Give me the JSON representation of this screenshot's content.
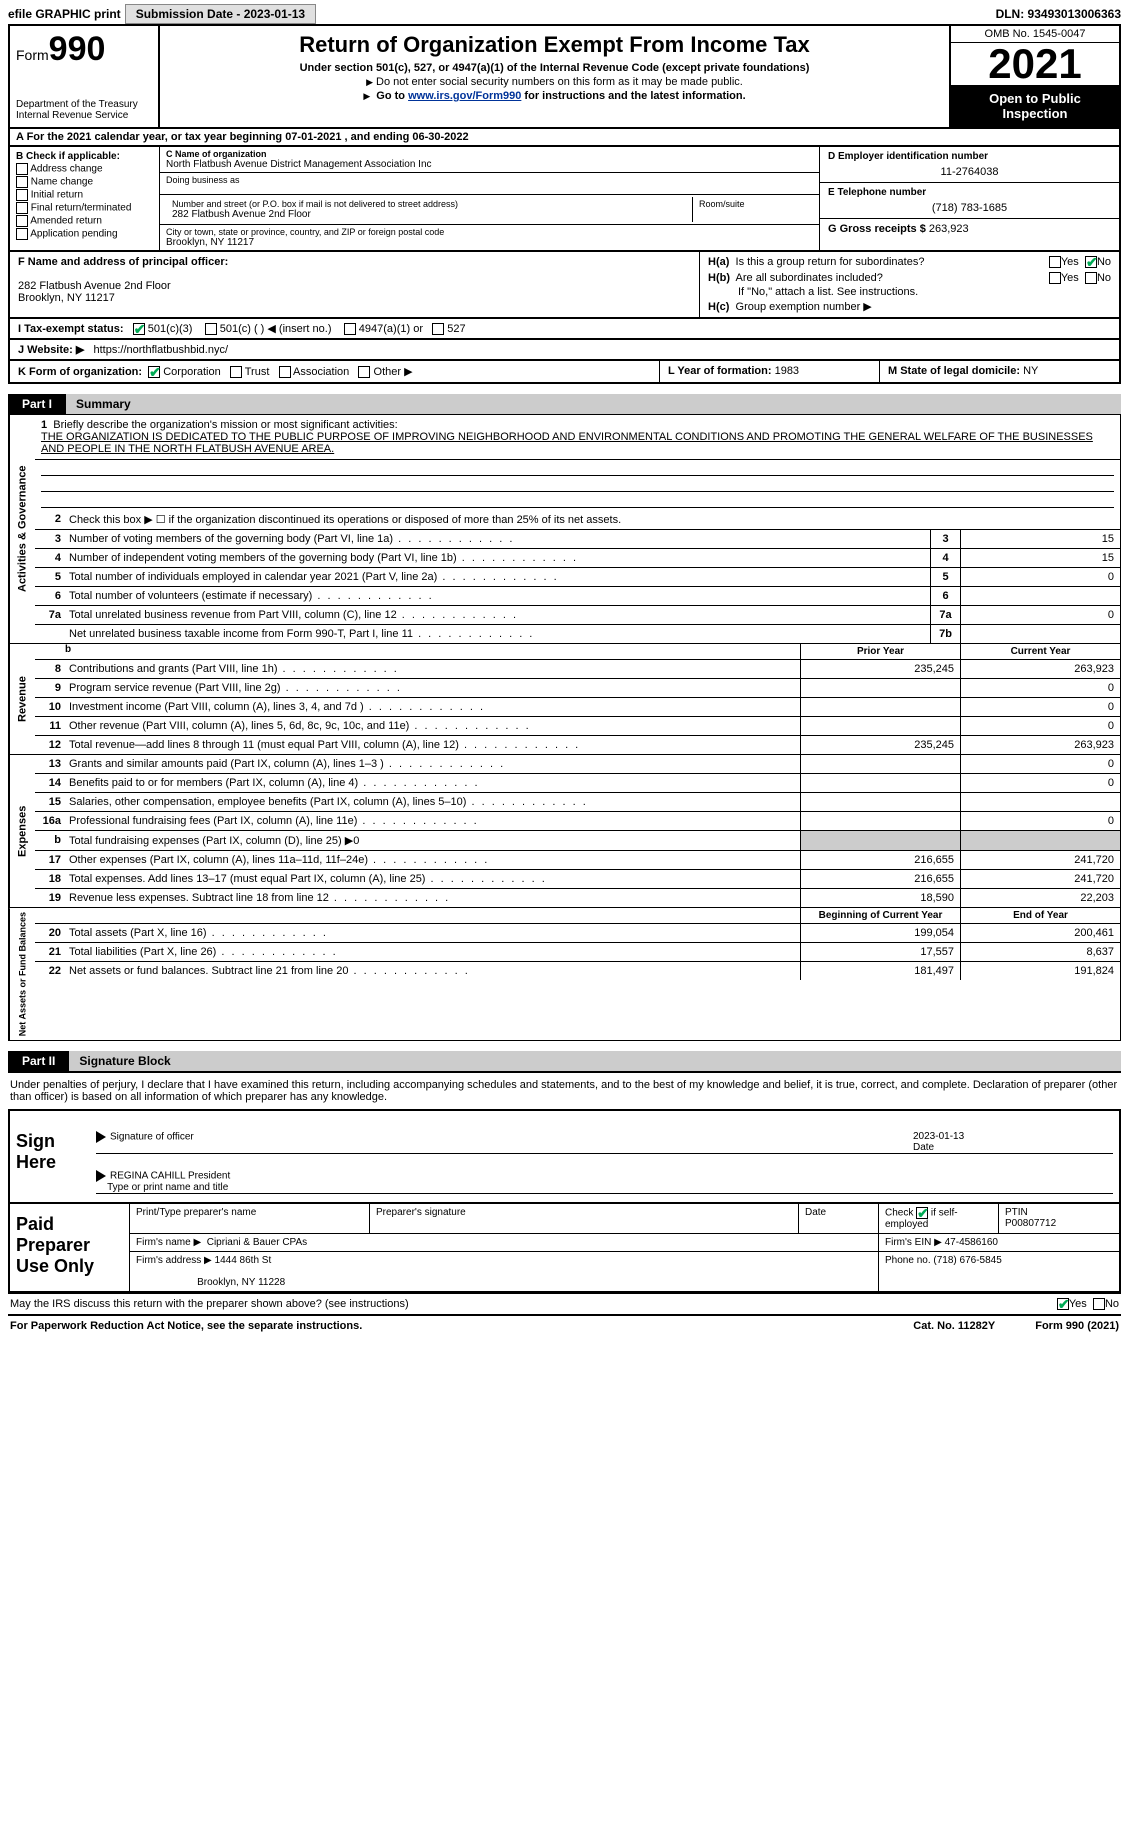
{
  "top": {
    "efile": "efile GRAPHIC print",
    "submission": "Submission Date - 2023-01-13",
    "dln": "DLN: 93493013006363"
  },
  "header": {
    "form_word": "Form",
    "form_num": "990",
    "dept": "Department of the Treasury Internal Revenue Service",
    "title": "Return of Organization Exempt From Income Tax",
    "sub": "Under section 501(c), 527, or 4947(a)(1) of the Internal Revenue Code (except private foundations)",
    "note1": "Do not enter social security numbers on this form as it may be made public.",
    "note2_a": "Go to ",
    "note2_link": "www.irs.gov/Form990",
    "note2_b": " for instructions and the latest information.",
    "omb": "OMB No. 1545-0047",
    "year": "2021",
    "open": "Open to Public Inspection"
  },
  "rowA": "A For the 2021 calendar year, or tax year beginning 07-01-2021    , and ending 06-30-2022",
  "boxB": {
    "hdr": "B Check if applicable:",
    "items": [
      "Address change",
      "Name change",
      "Initial return",
      "Final return/terminated",
      "Amended return",
      "Application pending"
    ]
  },
  "boxC": {
    "lbl": "C Name of organization",
    "name": "North Flatbush Avenue District Management Association Inc",
    "dba_lbl": "Doing business as",
    "addr_lbl": "Number and street (or P.O. box if mail is not delivered to street address)",
    "room_lbl": "Room/suite",
    "addr": "282 Flatbush Avenue 2nd Floor",
    "city_lbl": "City or town, state or province, country, and ZIP or foreign postal code",
    "city": "Brooklyn, NY  11217"
  },
  "boxD": {
    "lbl": "D Employer identification number",
    "val": "11-2764038"
  },
  "boxE": {
    "lbl": "E Telephone number",
    "val": "(718) 783-1685"
  },
  "boxG": {
    "lbl": "G Gross receipts $",
    "val": "263,923"
  },
  "boxF": {
    "lbl": "F  Name and address of principal officer:",
    "addr1": "282 Flatbush Avenue 2nd Floor",
    "addr2": "Brooklyn, NY  11217"
  },
  "boxH": {
    "a": "Is this a group return for subordinates?",
    "b": "Are all subordinates included?",
    "note": "If \"No,\" attach a list. See instructions.",
    "c": "Group exemption number ▶",
    "yes": "Yes",
    "no": "No"
  },
  "rowI": {
    "lbl": "I   Tax-exempt status:",
    "a": "501(c)(3)",
    "b": "501(c) (  ) ◀ (insert no.)",
    "c": "4947(a)(1) or",
    "d": "527"
  },
  "rowJ": {
    "lbl": "J   Website: ▶",
    "val": "https://northflatbushbid.nyc/"
  },
  "rowK": {
    "lbl": "K Form of organization:",
    "a": "Corporation",
    "b": "Trust",
    "c": "Association",
    "d": "Other ▶"
  },
  "rowL": {
    "lbl": "L Year of formation:",
    "val": "1983"
  },
  "rowM": {
    "lbl": "M State of legal domicile:",
    "val": "NY"
  },
  "part1": {
    "tab": "Part I",
    "title": "Summary"
  },
  "mission": {
    "q": "Briefly describe the organization's mission or most significant activities:",
    "txt": "THE ORGANIZATION IS DEDICATED TO THE PUBLIC PURPOSE OF IMPROVING NEIGHBORHOOD AND ENVIRONMENTAL CONDITIONS AND PROMOTING THE GENERAL WELFARE OF THE BUSINESSES AND PEOPLE IN THE NORTH FLATBUSH AVENUE AREA."
  },
  "gov_lines": [
    {
      "n": "2",
      "t": "Check this box ▶ ☐  if the organization discontinued its operations or disposed of more than 25% of its net assets."
    },
    {
      "n": "3",
      "t": "Number of voting members of the governing body (Part VI, line 1a)",
      "box": "3",
      "v": "15"
    },
    {
      "n": "4",
      "t": "Number of independent voting members of the governing body (Part VI, line 1b)",
      "box": "4",
      "v": "15"
    },
    {
      "n": "5",
      "t": "Total number of individuals employed in calendar year 2021 (Part V, line 2a)",
      "box": "5",
      "v": "0"
    },
    {
      "n": "6",
      "t": "Total number of volunteers (estimate if necessary)",
      "box": "6",
      "v": ""
    },
    {
      "n": "7a",
      "t": "Total unrelated business revenue from Part VIII, column (C), line 12",
      "box": "7a",
      "v": "0"
    },
    {
      "n": "",
      "t": "Net unrelated business taxable income from Form 990-T, Part I, line 11",
      "box": "7b",
      "v": ""
    }
  ],
  "hdrs": {
    "prior": "Prior Year",
    "current": "Current Year",
    "boy": "Beginning of Current Year",
    "eoy": "End of Year"
  },
  "rev_lines": [
    {
      "n": "8",
      "t": "Contributions and grants (Part VIII, line 1h)",
      "p": "235,245",
      "c": "263,923"
    },
    {
      "n": "9",
      "t": "Program service revenue (Part VIII, line 2g)",
      "p": "",
      "c": "0"
    },
    {
      "n": "10",
      "t": "Investment income (Part VIII, column (A), lines 3, 4, and 7d )",
      "p": "",
      "c": "0"
    },
    {
      "n": "11",
      "t": "Other revenue (Part VIII, column (A), lines 5, 6d, 8c, 9c, 10c, and 11e)",
      "p": "",
      "c": "0"
    },
    {
      "n": "12",
      "t": "Total revenue—add lines 8 through 11 (must equal Part VIII, column (A), line 12)",
      "p": "235,245",
      "c": "263,923"
    }
  ],
  "exp_lines": [
    {
      "n": "13",
      "t": "Grants and similar amounts paid (Part IX, column (A), lines 1–3 )",
      "p": "",
      "c": "0"
    },
    {
      "n": "14",
      "t": "Benefits paid to or for members (Part IX, column (A), line 4)",
      "p": "",
      "c": "0"
    },
    {
      "n": "15",
      "t": "Salaries, other compensation, employee benefits (Part IX, column (A), lines 5–10)",
      "p": "",
      "c": ""
    },
    {
      "n": "16a",
      "t": "Professional fundraising fees (Part IX, column (A), line 11e)",
      "p": "",
      "c": "0"
    },
    {
      "n": "b",
      "t": "Total fundraising expenses (Part IX, column (D), line 25) ▶0",
      "grey": true
    },
    {
      "n": "17",
      "t": "Other expenses (Part IX, column (A), lines 11a–11d, 11f–24e)",
      "p": "216,655",
      "c": "241,720"
    },
    {
      "n": "18",
      "t": "Total expenses. Add lines 13–17 (must equal Part IX, column (A), line 25)",
      "p": "216,655",
      "c": "241,720"
    },
    {
      "n": "19",
      "t": "Revenue less expenses. Subtract line 18 from line 12",
      "p": "18,590",
      "c": "22,203"
    }
  ],
  "net_lines": [
    {
      "n": "20",
      "t": "Total assets (Part X, line 16)",
      "p": "199,054",
      "c": "200,461"
    },
    {
      "n": "21",
      "t": "Total liabilities (Part X, line 26)",
      "p": "17,557",
      "c": "8,637"
    },
    {
      "n": "22",
      "t": "Net assets or fund balances. Subtract line 21 from line 20",
      "p": "181,497",
      "c": "191,824"
    }
  ],
  "sides": {
    "gov": "Activities & Governance",
    "rev": "Revenue",
    "exp": "Expenses",
    "net": "Net Assets or Fund Balances"
  },
  "part2": {
    "tab": "Part II",
    "title": "Signature Block"
  },
  "sig": {
    "decl": "Under penalties of perjury, I declare that I have examined this return, including accompanying schedules and statements, and to the best of my knowledge and belief, it is true, correct, and complete. Declaration of preparer (other than officer) is based on all information of which preparer has any knowledge.",
    "here": "Sign Here",
    "officer": "Signature of officer",
    "date": "Date",
    "date_val": "2023-01-13",
    "name": "REGINA CAHILL President",
    "name_lbl": "Type or print name and title"
  },
  "pp": {
    "label": "Paid Preparer Use Only",
    "h1": "Print/Type preparer's name",
    "h2": "Preparer's signature",
    "h3": "Date",
    "h4a": "Check",
    "h4b": "if self-employed",
    "h5": "PTIN",
    "ptin": "P00807712",
    "firm_lbl": "Firm's name   ▶",
    "firm": "Cipriani & Bauer CPAs",
    "ein_lbl": "Firm's EIN ▶",
    "ein": "47-4586160",
    "addr_lbl": "Firm's address ▶",
    "addr1": "1444 86th St",
    "addr2": "Brooklyn, NY  11228",
    "phone_lbl": "Phone no.",
    "phone": "(718) 676-5845"
  },
  "footer": {
    "q": "May the IRS discuss this return with the preparer shown above? (see instructions)",
    "yes": "Yes",
    "no": "No",
    "pra": "For Paperwork Reduction Act Notice, see the separate instructions.",
    "cat": "Cat. No. 11282Y",
    "form": "Form 990 (2021)"
  }
}
